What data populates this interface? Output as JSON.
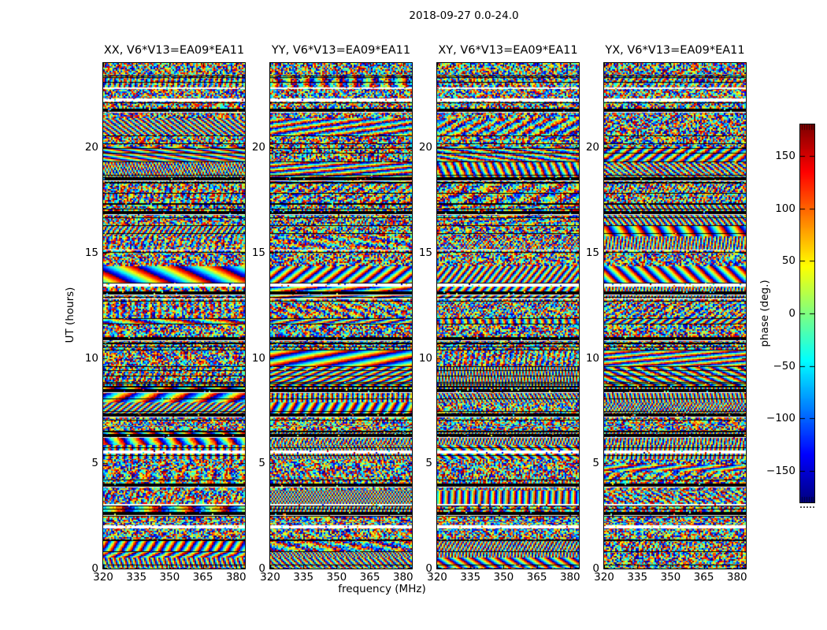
{
  "chart_data": {
    "type": "heatmap",
    "title": "2018-09-27 0.0-24.0",
    "xlabel": "frequency (MHz)",
    "ylabel": "UT (hours)",
    "x_range": [
      320,
      384
    ],
    "y_range": [
      0,
      24
    ],
    "x_ticks": [
      320,
      335,
      350,
      365,
      380
    ],
    "y_ticks": [
      0,
      5,
      10,
      15,
      20
    ],
    "colormap": "jet",
    "value_range_deg": [
      -180,
      180
    ],
    "panels": [
      {
        "label": "XX",
        "title": "XX, V6*V13=EA09*EA11",
        "seed": 101
      },
      {
        "label": "YY",
        "title": "YY, V6*V13=EA09*EA11",
        "seed": 202
      },
      {
        "label": "XY",
        "title": "XY, V6*V13=EA09*EA11",
        "seed": 303
      },
      {
        "label": "YX",
        "title": "YX, V6*V13=EA09*EA11",
        "seed": 404
      }
    ],
    "colorbar": {
      "label": "phase (deg.)",
      "tick_values": [
        150,
        100,
        50,
        0,
        -50,
        -100,
        -150
      ],
      "tick_labels": [
        "150",
        "100",
        "50",
        "0",
        "−50",
        "−100",
        "−150"
      ]
    },
    "content_description": "Wrapped interferometric phase (deg., jet colormap) versus frequency (320–384 MHz) and time (UT 0–24 h) for correlation products XX/YY/XY/YX of baseline V6*V13=EA09*EA11; dense phase-wrap fringe texture broken by flagged black rows and white data gaps",
    "white_gap_ut": [
      22.25,
      13.45,
      5.55,
      1.98
    ],
    "dark_band_ut": [
      21.75,
      18.5,
      16.9,
      13.1,
      10.9,
      8.45,
      7.3,
      6.3,
      3.95,
      2.6
    ],
    "band_seed": 42
  }
}
